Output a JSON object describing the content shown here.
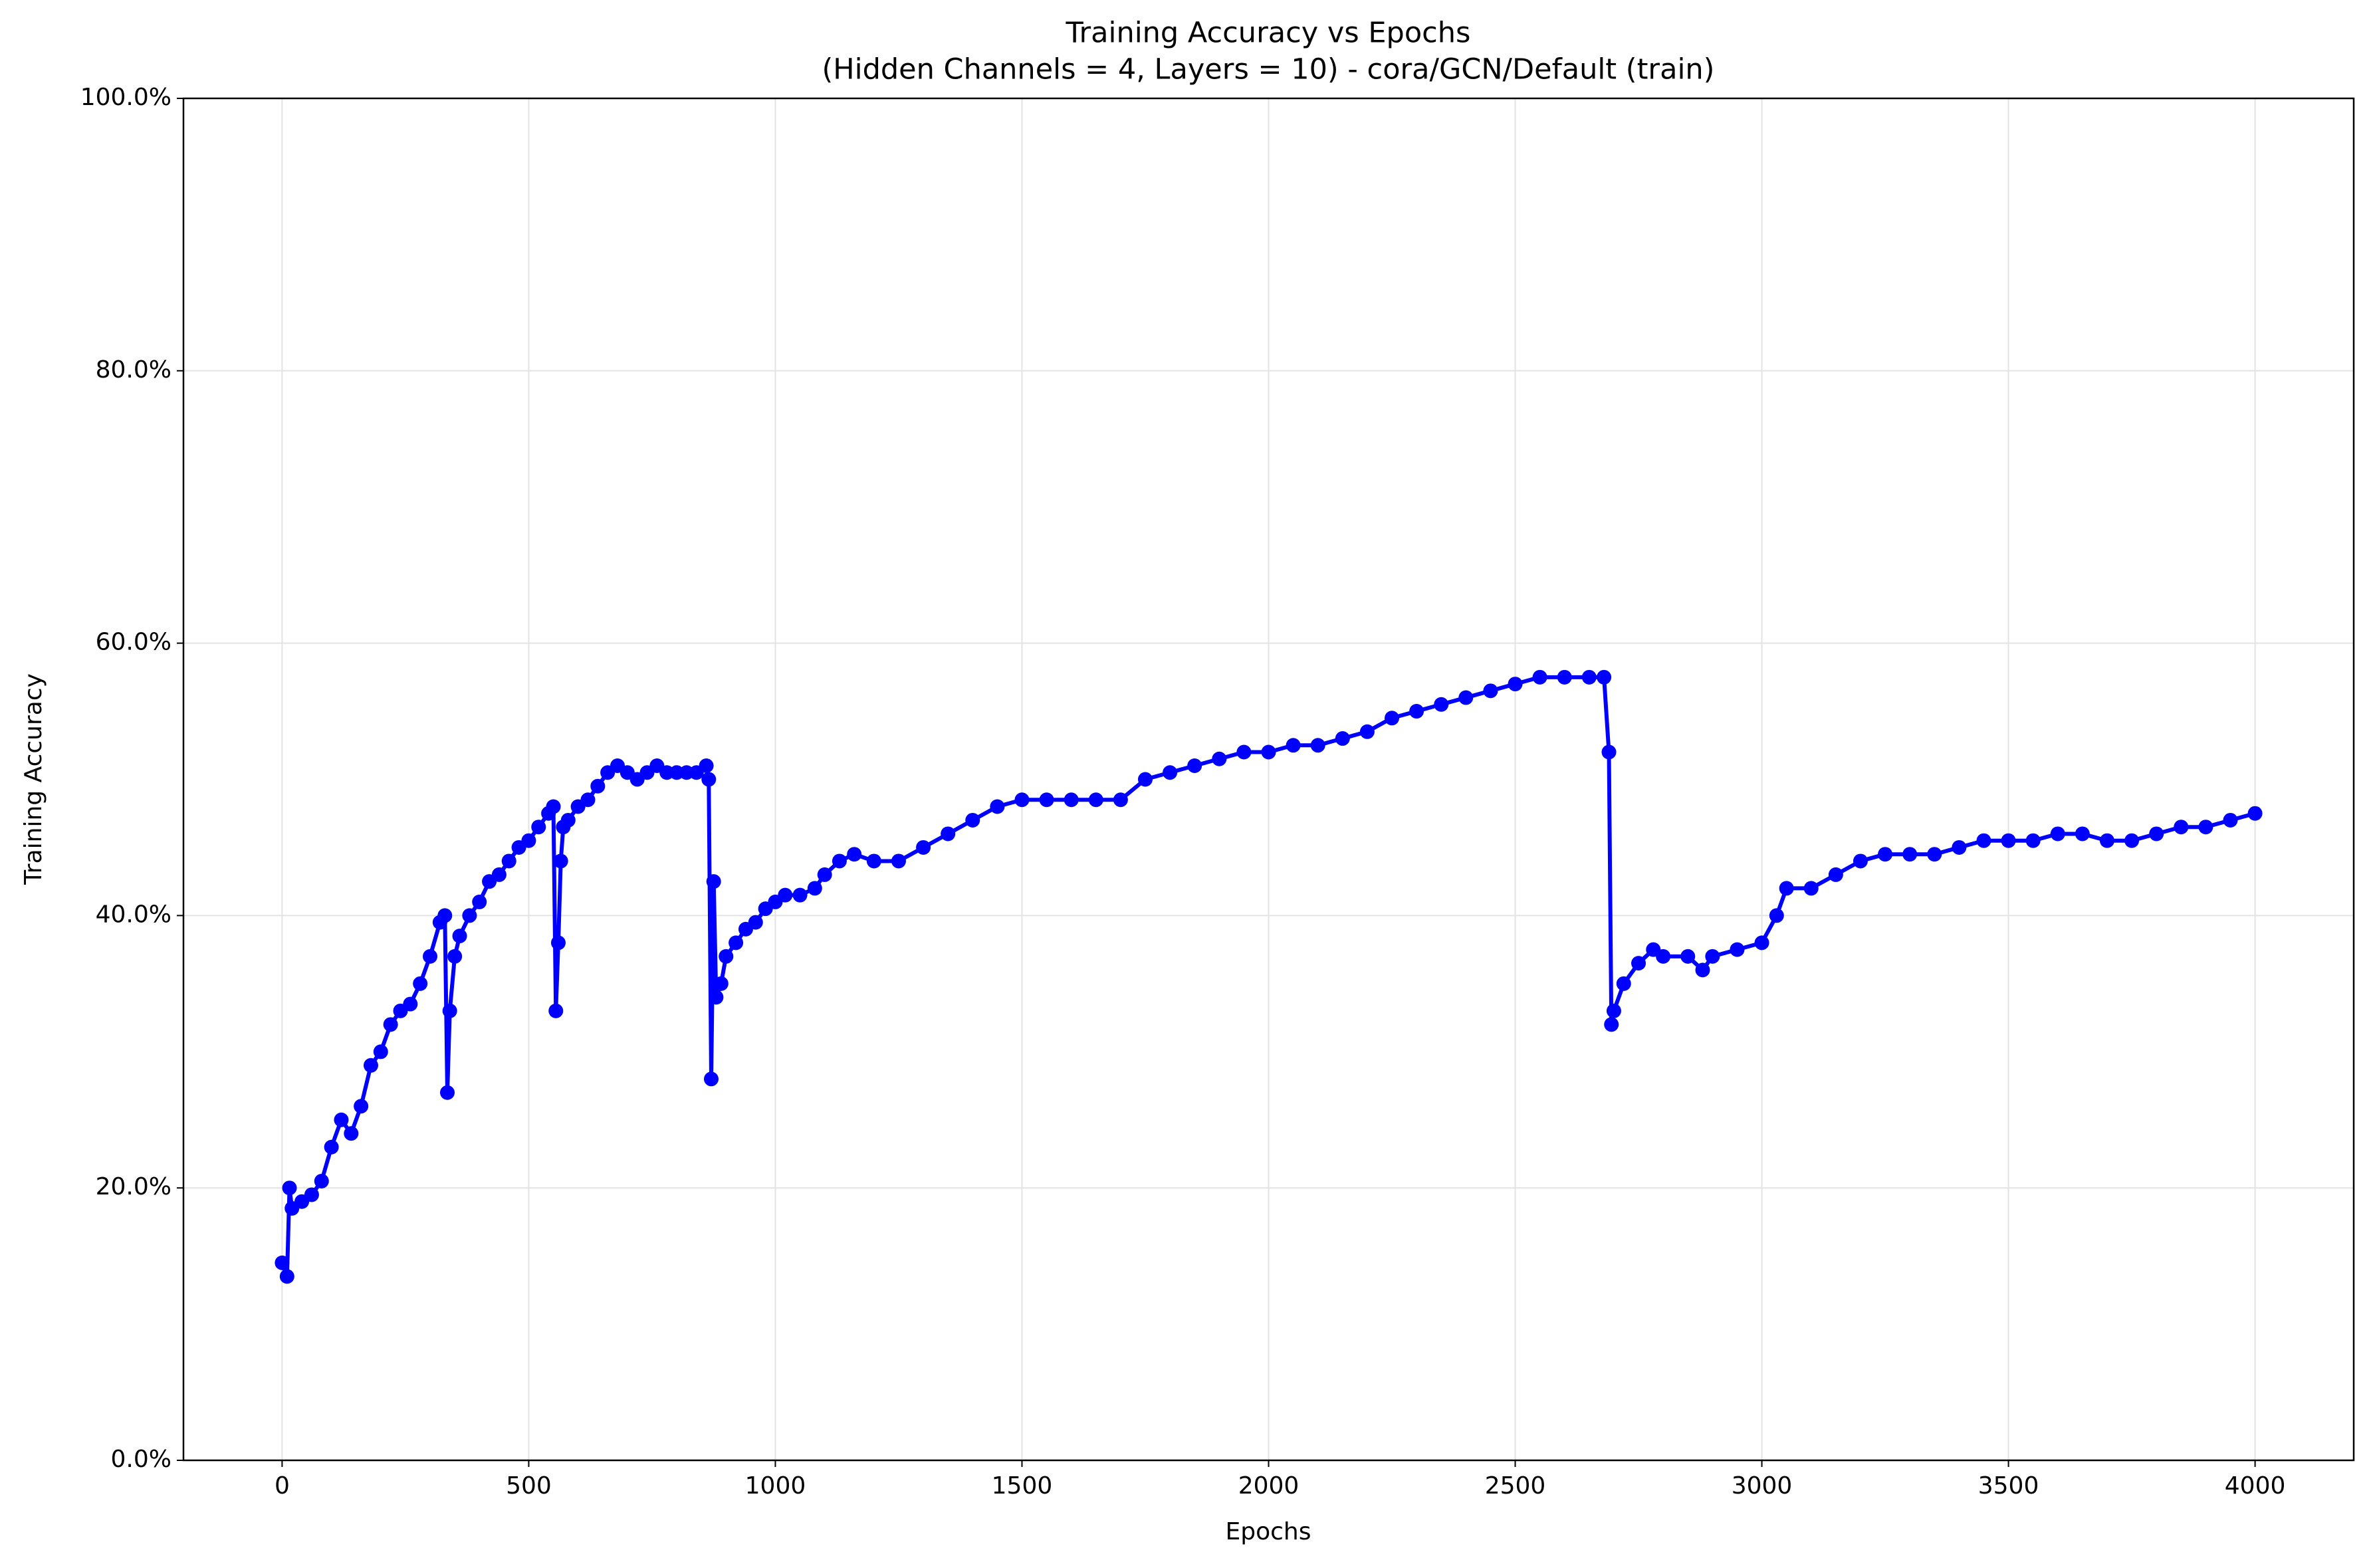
{
  "chart_data": {
    "type": "line",
    "title": "Training Accuracy vs Epochs",
    "subtitle": "(Hidden Channels = 4, Layers = 10) - cora/GCN/Default (train)",
    "x_label": "Epochs",
    "y_label": "Training Accuracy",
    "xlim": [
      -200,
      4200
    ],
    "ylim": [
      0,
      100
    ],
    "xticks": [
      0,
      500,
      1000,
      1500,
      2000,
      2500,
      3000,
      3500,
      4000
    ],
    "yticks": [
      {
        "value": 0,
        "label": "0.0%"
      },
      {
        "value": 20,
        "label": "20.0%"
      },
      {
        "value": 40,
        "label": "40.0%"
      },
      {
        "value": 60,
        "label": "60.0%"
      },
      {
        "value": 80,
        "label": "80.0%"
      },
      {
        "value": 100,
        "label": "100.0%"
      }
    ],
    "grid": true,
    "x": [
      0,
      10,
      15,
      20,
      40,
      60,
      80,
      100,
      120,
      140,
      160,
      180,
      200,
      220,
      240,
      260,
      280,
      300,
      320,
      330,
      335,
      340,
      350,
      360,
      380,
      400,
      420,
      440,
      460,
      480,
      500,
      520,
      540,
      550,
      555,
      560,
      565,
      570,
      580,
      600,
      620,
      640,
      660,
      680,
      700,
      720,
      740,
      760,
      780,
      800,
      820,
      840,
      860,
      865,
      870,
      875,
      880,
      890,
      900,
      920,
      940,
      960,
      980,
      1000,
      1020,
      1050,
      1080,
      1100,
      1130,
      1160,
      1200,
      1250,
      1300,
      1350,
      1400,
      1450,
      1500,
      1550,
      1600,
      1650,
      1700,
      1750,
      1800,
      1850,
      1900,
      1950,
      2000,
      2050,
      2100,
      2150,
      2200,
      2250,
      2300,
      2350,
      2400,
      2450,
      2500,
      2550,
      2600,
      2650,
      2680,
      2690,
      2695,
      2700,
      2720,
      2750,
      2780,
      2800,
      2850,
      2880,
      2900,
      2950,
      3000,
      3030,
      3050,
      3100,
      3150,
      3200,
      3250,
      3300,
      3350,
      3400,
      3450,
      3500,
      3550,
      3600,
      3650,
      3700,
      3750,
      3800,
      3850,
      3900,
      3950,
      4000
    ],
    "series": [
      {
        "name": "Training Accuracy",
        "color": "#0000ff",
        "values": [
          14.5,
          13.5,
          20,
          18.5,
          19,
          19.5,
          20.5,
          23,
          25,
          24,
          26,
          29,
          30,
          32,
          33,
          33.5,
          35,
          37,
          39.5,
          40,
          27,
          33,
          37,
          38.5,
          40,
          41,
          42.5,
          43,
          44,
          45,
          45.5,
          46.5,
          47.5,
          48,
          33,
          38,
          44,
          46.5,
          47,
          48,
          48.5,
          49.5,
          50.5,
          51,
          50.5,
          50,
          50.5,
          51,
          50.5,
          50.5,
          50.5,
          50.5,
          51,
          50,
          28,
          42.5,
          34,
          35,
          37,
          38,
          39,
          39.5,
          40.5,
          41,
          41.5,
          41.5,
          42,
          43,
          44,
          44.5,
          44,
          44,
          45,
          46,
          47,
          48,
          48.5,
          48.5,
          48.5,
          48.5,
          48.5,
          50,
          50.5,
          51,
          51.5,
          52,
          52,
          52.5,
          52.5,
          53,
          53.5,
          54.5,
          55,
          55.5,
          56,
          56.5,
          57,
          57.5,
          57.5,
          57.5,
          57.5,
          52,
          32,
          33,
          35,
          36.5,
          37.5,
          37,
          37,
          36,
          37,
          37.5,
          38,
          40,
          42,
          42,
          43,
          44,
          44.5,
          44.5,
          44.5,
          45,
          45.5,
          45.5,
          45.5,
          46,
          46,
          45.5,
          45.5,
          46,
          46.5,
          46.5,
          47,
          47.5
        ]
      }
    ]
  }
}
